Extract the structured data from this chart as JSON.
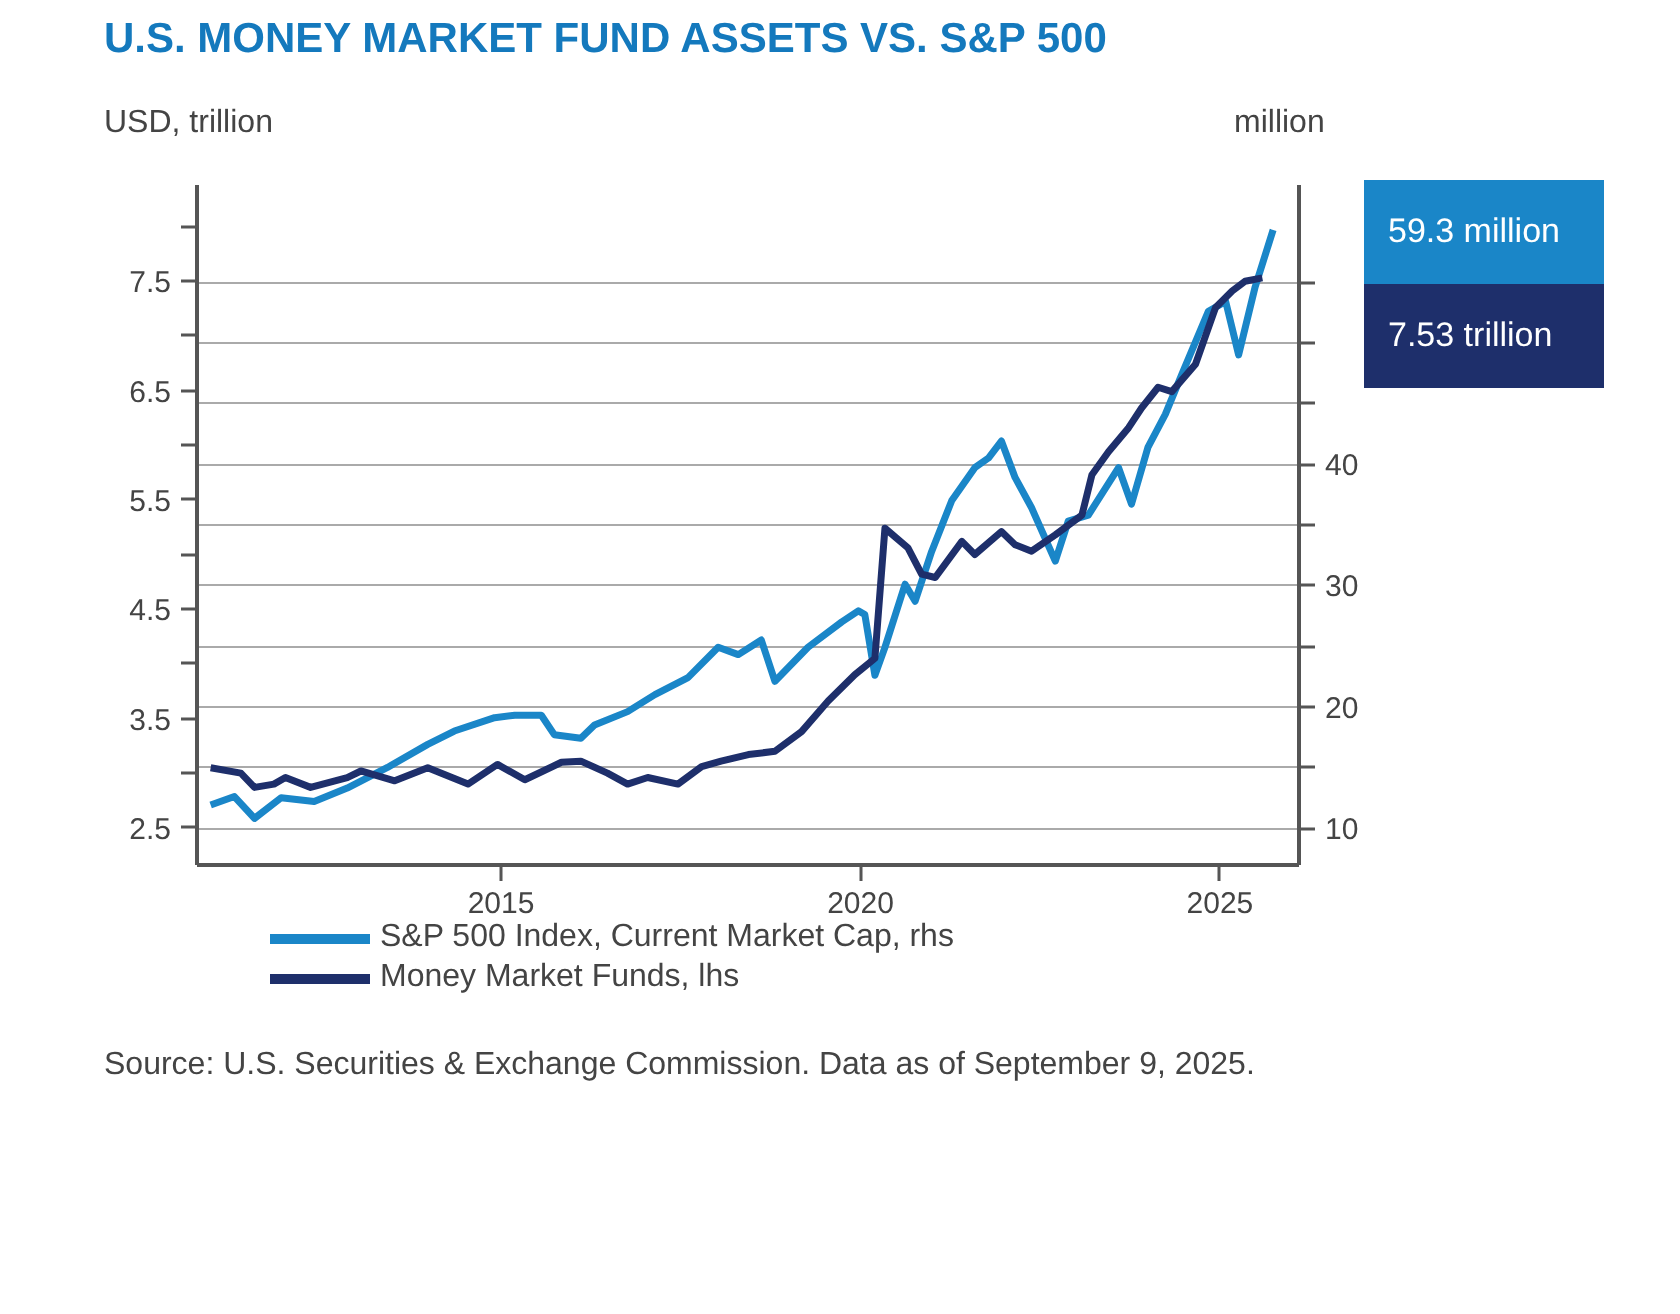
{
  "chart_data": {
    "type": "line",
    "title": "U.S. MONEY MARKET FUND ASSETS VS. S&P 500",
    "ylabel": "USD, trillion",
    "y2label": "million",
    "xlim": [
      2010.77,
      2026.1
    ],
    "xticks": [
      2015,
      2020,
      2025
    ],
    "ylim": [
      2.16,
      8.38
    ],
    "yticks": [
      2.5,
      {
        "value": 3.0,
        "label": null
      },
      3.5,
      {
        "value": 4.0,
        "label": null
      },
      4.5,
      {
        "value": 5.0,
        "label": null
      },
      5.5,
      {
        "value": 6.0,
        "label": null
      },
      6.5,
      {
        "value": 7.0,
        "label": null
      },
      7.5,
      {
        "value": 8.0,
        "label": null
      }
    ],
    "y2lim": [
      6.96,
      63
    ],
    "y2ticks": [
      10,
      {
        "value": 15,
        "label": null
      },
      20,
      {
        "value": 25,
        "label": null
      },
      30,
      {
        "value": 35,
        "label": null
      },
      40,
      {
        "value": 45,
        "label": null
      },
      {
        "value": 50,
        "label": null
      },
      {
        "value": 55,
        "label": null
      }
    ],
    "grid": "y2",
    "legend": "bottom",
    "series": [
      {
        "name": "S&P 500 Index, Current Market Cap, rhs",
        "color": "#1a86c8",
        "axis": "y2",
        "x": [
          2010.96,
          2011.29,
          2011.57,
          2011.94,
          2012.4,
          2012.86,
          2013.42,
          2013.98,
          2014.35,
          2014.91,
          2015.19,
          2015.56,
          2015.74,
          2016.11,
          2016.3,
          2016.76,
          2017.14,
          2017.6,
          2018.02,
          2018.3,
          2018.62,
          2018.81,
          2019.27,
          2019.74,
          2019.97,
          2020.06,
          2020.2,
          2020.34,
          2020.62,
          2020.76,
          2020.99,
          2021.27,
          2021.59,
          2021.78,
          2021.96,
          2022.15,
          2022.38,
          2022.71,
          2022.89,
          2023.17,
          2023.59,
          2023.77,
          2024.0,
          2024.24,
          2024.47,
          2024.84,
          2025.08,
          2025.26,
          2025.49,
          2025.74
        ],
        "values": [
          11.9,
          12.6,
          10.8,
          12.5,
          12.2,
          13.3,
          15.0,
          16.9,
          18.0,
          19.1,
          19.3,
          19.3,
          17.7,
          17.4,
          18.5,
          19.6,
          21.0,
          22.4,
          24.9,
          24.3,
          25.5,
          22.1,
          24.9,
          27.0,
          27.9,
          27.6,
          22.6,
          24.9,
          30.1,
          28.7,
          32.8,
          37.0,
          39.7,
          40.5,
          41.9,
          38.9,
          36.4,
          32.0,
          35.3,
          35.8,
          39.7,
          36.7,
          41.4,
          44.1,
          47.4,
          52.6,
          53.4,
          49.0,
          54.6,
          59.3
        ]
      },
      {
        "name": "Money Market Funds, lhs",
        "color": "#1e2f6b",
        "x": [
          2010.96,
          2011.38,
          2011.57,
          2011.84,
          2012.0,
          2012.35,
          2012.86,
          2013.05,
          2013.52,
          2013.98,
          2014.54,
          2014.95,
          2015.33,
          2015.84,
          2016.11,
          2016.48,
          2016.76,
          2017.04,
          2017.46,
          2017.79,
          2018.06,
          2018.44,
          2018.81,
          2019.18,
          2019.55,
          2019.92,
          2020.2,
          2020.34,
          2020.66,
          2020.85,
          2021.04,
          2021.41,
          2021.59,
          2021.96,
          2022.15,
          2022.38,
          2022.71,
          2023.08,
          2023.22,
          2023.45,
          2023.73,
          2023.91,
          2024.14,
          2024.33,
          2024.66,
          2024.94,
          2025.17,
          2025.35,
          2025.59
        ],
        "values": [
          3.05,
          3.0,
          2.87,
          2.9,
          2.96,
          2.87,
          2.96,
          3.02,
          2.93,
          3.05,
          2.9,
          3.08,
          2.94,
          3.1,
          3.11,
          3.0,
          2.9,
          2.96,
          2.9,
          3.06,
          3.11,
          3.17,
          3.2,
          3.38,
          3.66,
          3.9,
          4.05,
          5.24,
          5.06,
          4.82,
          4.79,
          5.12,
          5.0,
          5.21,
          5.09,
          5.03,
          5.18,
          5.36,
          5.73,
          5.94,
          6.16,
          6.34,
          6.53,
          6.49,
          6.74,
          7.26,
          7.41,
          7.5,
          7.53
        ]
      }
    ],
    "annotations": [
      "59.3 million",
      "7.53 trillion",
      "Source: U.S. Securities & Exchange Commission. Data as of September 9, 2025."
    ]
  }
}
